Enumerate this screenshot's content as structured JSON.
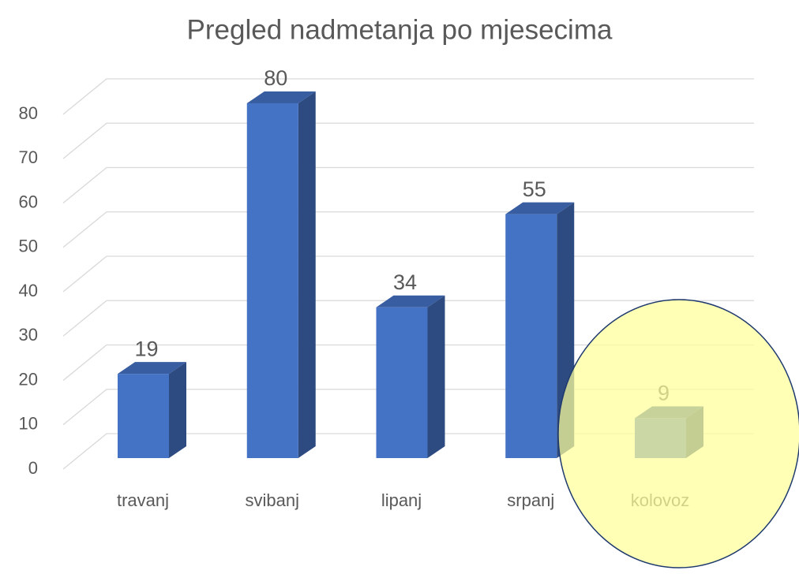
{
  "chart_data": {
    "type": "bar3d",
    "title": "Pregled nadmetanja po mjesecima",
    "categories": [
      "travanj",
      "svibanj",
      "lipanj",
      "srpanj",
      "kolovoz"
    ],
    "values": [
      19,
      80,
      34,
      55,
      9
    ],
    "color": "#4472c4",
    "ylim": [
      0,
      80
    ],
    "yticks": [
      0,
      10,
      20,
      30,
      40,
      50,
      60,
      70,
      80
    ],
    "grid": true
  }
}
